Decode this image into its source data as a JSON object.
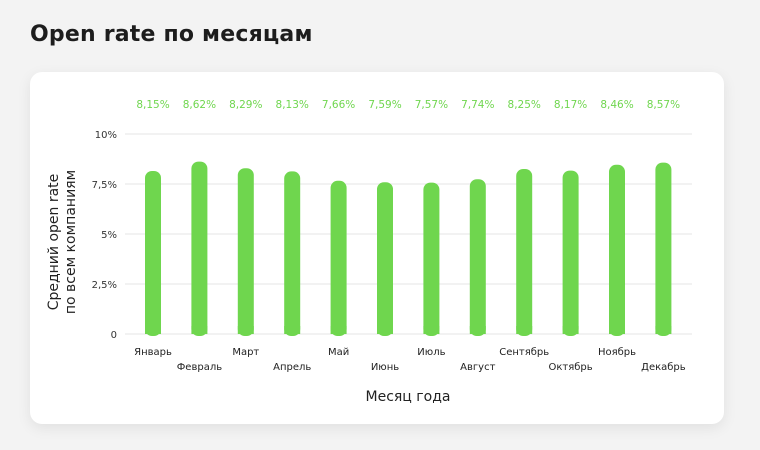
{
  "page": {
    "title": "Open rate по месяцам"
  },
  "chart_data": {
    "type": "bar",
    "categories": [
      "Январь",
      "Февраль",
      "Март",
      "Апрель",
      "Май",
      "Июнь",
      "Июль",
      "Август",
      "Сентябрь",
      "Октябрь",
      "Ноябрь",
      "Декабрь"
    ],
    "values": [
      8.15,
      8.62,
      8.29,
      8.13,
      7.66,
      7.59,
      7.57,
      7.74,
      8.25,
      8.17,
      8.46,
      8.57
    ],
    "data_labels": [
      "8,15%",
      "8,62%",
      "8,29%",
      "8,13%",
      "7,66%",
      "7,59%",
      "7,57%",
      "7,74%",
      "8,25%",
      "8,17%",
      "8,46%",
      "8,57%"
    ],
    "xlabel": "Месяц года",
    "ylabel": [
      "Средний open rate",
      "по всем компаниям"
    ],
    "ylim": [
      0,
      10
    ],
    "yticks": [
      0,
      2.5,
      5,
      7.5,
      10
    ],
    "ytick_labels": [
      "0",
      "2,5%",
      "5%",
      "7,5%",
      "10%"
    ],
    "grid": true,
    "colors": {
      "bar": "#6fd64e",
      "label": "#6fd64e",
      "grid": "#e6e6e6"
    }
  }
}
